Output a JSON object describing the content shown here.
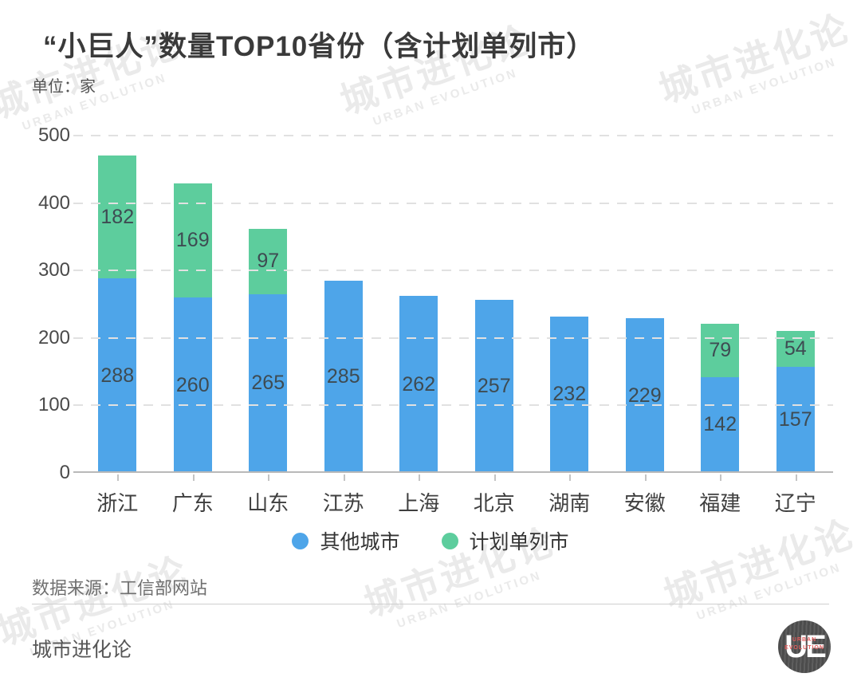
{
  "chart_data": {
    "type": "bar",
    "stacked": true,
    "title": "“小巨人”数量TOP10省份（含计划单列市）",
    "unit_label": "单位：家",
    "categories": [
      "浙江",
      "广东",
      "山东",
      "江苏",
      "上海",
      "北京",
      "湖南",
      "安徽",
      "福建",
      "辽宁"
    ],
    "series": [
      {
        "name": "其他城市",
        "color": "#4ea5e9",
        "values": [
          288,
          260,
          265,
          285,
          262,
          257,
          232,
          229,
          142,
          157
        ]
      },
      {
        "name": "计划单列市",
        "color": "#5dcd9d",
        "values": [
          182,
          169,
          97,
          0,
          0,
          0,
          0,
          0,
          79,
          54
        ]
      }
    ],
    "totals": [
      470,
      429,
      362,
      285,
      262,
      257,
      232,
      229,
      221,
      211
    ],
    "ylim": [
      0,
      500
    ],
    "yticks": [
      0,
      100,
      200,
      300,
      400,
      500
    ],
    "grid": "horizontal-dashed",
    "legend_position": "bottom-center",
    "value_labels": "inside-center"
  },
  "watermark": {
    "cn": "城市进化论",
    "en": "URBAN EVOLUTION"
  },
  "footer": {
    "source": "数据来源：工信部网站",
    "brand": "城市进化论",
    "logo_monogram": "UE",
    "logo_caption_line1": "URBAN",
    "logo_caption_line2": "EVOLUTION",
    "logo_caption_color": "#e05c5c"
  }
}
